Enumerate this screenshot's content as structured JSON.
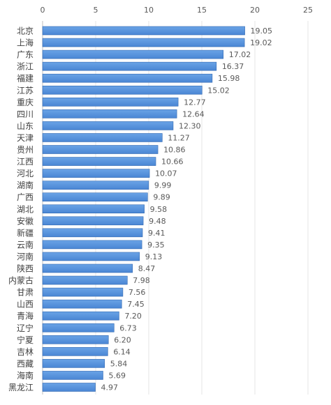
{
  "chart_data": {
    "type": "bar",
    "orientation": "horizontal",
    "title": "",
    "xlabel": "",
    "ylabel": "",
    "xlim": [
      0,
      25
    ],
    "x_ticks": [
      0,
      5,
      10,
      15,
      20,
      25
    ],
    "x_axis_position": "top",
    "grid": true,
    "legend": "none",
    "bar_color": "#4a86d4",
    "bar_edge_color": "#2f66b0",
    "categories": [
      "北京",
      "上海",
      "广东",
      "浙江",
      "福建",
      "江苏",
      "重庆",
      "四川",
      "山东",
      "天津",
      "贵州",
      "江西",
      "河北",
      "湖南",
      "广西",
      "湖北",
      "安徽",
      "新疆",
      "云南",
      "河南",
      "陕西",
      "内蒙古",
      "甘肃",
      "山西",
      "青海",
      "辽宁",
      "宁夏",
      "吉林",
      "西藏",
      "海南",
      "黑龙江"
    ],
    "values": [
      19.05,
      19.02,
      17.02,
      16.37,
      15.98,
      15.02,
      12.77,
      12.64,
      12.3,
      11.27,
      10.86,
      10.66,
      10.07,
      9.99,
      9.89,
      9.58,
      9.48,
      9.41,
      9.35,
      9.13,
      8.47,
      7.98,
      7.56,
      7.45,
      7.2,
      6.73,
      6.2,
      6.14,
      5.84,
      5.69,
      4.97
    ],
    "value_labels": [
      "19.05",
      "19.02",
      "17.02",
      "16.37",
      "15.98",
      "15.02",
      "12.77",
      "12.64",
      "12.30",
      "11.27",
      "10.86",
      "10.66",
      "10.07",
      "9.99",
      "9.89",
      "9.58",
      "9.48",
      "9.41",
      "9.35",
      "9.13",
      "8.47",
      "7.98",
      "7.56",
      "7.45",
      "7.20",
      "6.73",
      "6.20",
      "6.14",
      "5.84",
      "5.69",
      "4.97"
    ]
  }
}
